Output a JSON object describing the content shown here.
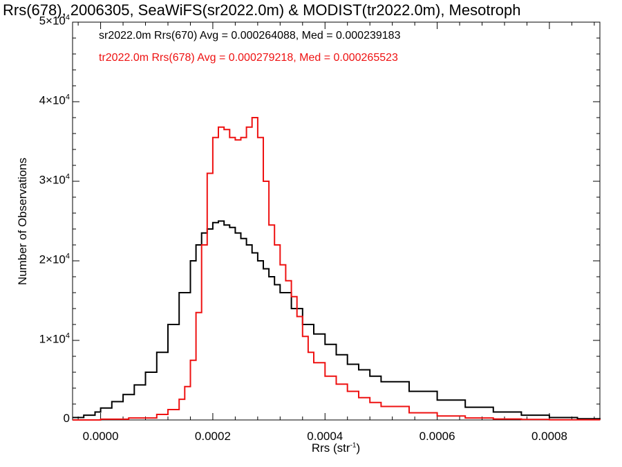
{
  "title": "Rrs(678), 2006305, SeaWiFS(sr2022.0m) & MODIST(tr2022.0m), Mesotroph",
  "colors": {
    "black_series": "#000000",
    "red_series": "#ee1111"
  },
  "legend": {
    "line1": "sr2022.0m Rrs(670) Avg = 0.000264088, Med = 0.000239183",
    "line2": "tr2022.0m Rrs(678) Avg = 0.000279218, Med = 0.000265523"
  },
  "axes": {
    "ylabel": "Number of Observations",
    "xlabel_main": "Rrs (str",
    "xlabel_sup": "-1",
    "xlabel_end": ")"
  },
  "chart_data": {
    "type": "line",
    "title": "Rrs(678), 2006305, SeaWiFS(sr2022.0m) & MODIST(tr2022.0m), Mesotroph",
    "xlabel": "Rrs (str-1)",
    "ylabel": "Number of Observations",
    "xlim": [
      -5e-05,
      0.00089
    ],
    "ylim": [
      0,
      50000
    ],
    "x_ticks": [
      "0.0000",
      "0.0002",
      "0.0004",
      "0.0006",
      "0.0008"
    ],
    "y_ticks": [
      {
        "value": 0,
        "mant": "0",
        "exp": ""
      },
      {
        "value": 10000,
        "mant": "1×10",
        "exp": "4"
      },
      {
        "value": 20000,
        "mant": "2×10",
        "exp": "4"
      },
      {
        "value": 30000,
        "mant": "3×10",
        "exp": "4"
      },
      {
        "value": 40000,
        "mant": "4×10",
        "exp": "4"
      },
      {
        "value": 50000,
        "mant": "5×10",
        "exp": "4"
      }
    ],
    "style": "histogram-step",
    "series": [
      {
        "name": "sr2022.0m Rrs(670)",
        "color": "#000000",
        "x": [
          -5e-05,
          -3e-05,
          -1e-05,
          0.0,
          2e-05,
          4e-05,
          6e-05,
          8e-05,
          0.0001,
          0.00012,
          0.00014,
          0.00016,
          0.00017,
          0.00018,
          0.00019,
          0.0002,
          0.00021,
          0.00022,
          0.00023,
          0.00024,
          0.00025,
          0.00026,
          0.00027,
          0.00028,
          0.00029,
          0.0003,
          0.00031,
          0.00032,
          0.00034,
          0.00036,
          0.00038,
          0.0004,
          0.00042,
          0.00044,
          0.00046,
          0.00048,
          0.0005,
          0.00055,
          0.0006,
          0.00065,
          0.0007,
          0.00075,
          0.0008,
          0.00085,
          0.00089
        ],
        "y": [
          300,
          600,
          1000,
          1500,
          2300,
          3200,
          4400,
          6000,
          8500,
          12000,
          16000,
          20000,
          22000,
          23500,
          24000,
          24800,
          25000,
          24500,
          24200,
          23500,
          22800,
          22000,
          21000,
          20000,
          19000,
          18000,
          17000,
          16000,
          14000,
          12000,
          10800,
          9500,
          8200,
          7000,
          6300,
          5500,
          4800,
          3600,
          2500,
          1600,
          1000,
          600,
          300,
          150,
          100
        ]
      },
      {
        "name": "tr2022.0m Rrs(678)",
        "color": "#ee1111",
        "x": [
          -5e-05,
          0.0,
          5e-05,
          0.0001,
          0.00012,
          0.00014,
          0.00015,
          0.00016,
          0.00017,
          0.00018,
          0.00019,
          0.0002,
          0.00021,
          0.00022,
          0.00023,
          0.00024,
          0.00025,
          0.00026,
          0.00027,
          0.00028,
          0.00029,
          0.0003,
          0.00031,
          0.00032,
          0.00033,
          0.00034,
          0.00035,
          0.00036,
          0.00037,
          0.00038,
          0.0004,
          0.00042,
          0.00044,
          0.00046,
          0.00048,
          0.0005,
          0.00055,
          0.0006,
          0.00065,
          0.0007,
          0.00075,
          0.0008,
          0.00089
        ],
        "y": [
          0,
          100,
          250,
          700,
          1300,
          2600,
          4200,
          7500,
          13500,
          22000,
          31000,
          35500,
          36800,
          36500,
          35500,
          35200,
          35500,
          36800,
          38000,
          35500,
          30000,
          24500,
          22000,
          19500,
          17500,
          15500,
          13000,
          10500,
          8500,
          7200,
          5500,
          4500,
          3600,
          2800,
          2200,
          1700,
          900,
          500,
          250,
          120,
          60,
          20,
          0
        ]
      }
    ]
  }
}
